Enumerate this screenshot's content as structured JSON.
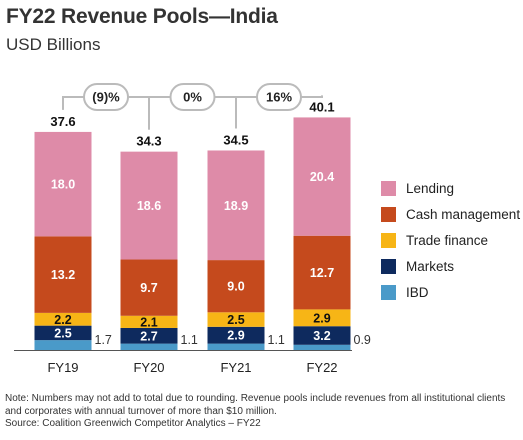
{
  "title": "FY22 Revenue Pools—India",
  "subtitle": "USD Billions",
  "chart_data": {
    "type": "bar",
    "stacked": true,
    "categories": [
      "FY19",
      "FY20",
      "FY21",
      "FY22"
    ],
    "series": [
      {
        "name": "IBD",
        "color": "#4a9ac9",
        "values": [
          1.7,
          1.1,
          1.1,
          0.9
        ]
      },
      {
        "name": "Markets",
        "color": "#0e2a5e",
        "values": [
          2.5,
          2.7,
          2.9,
          3.2
        ]
      },
      {
        "name": "Trade finance",
        "color": "#f7b516",
        "values": [
          2.2,
          2.1,
          2.5,
          2.9
        ]
      },
      {
        "name": "Cash management",
        "color": "#c54a1d",
        "values": [
          13.2,
          9.7,
          9.0,
          12.7
        ]
      },
      {
        "name": "Lending",
        "color": "#de8ba8",
        "values": [
          18.0,
          18.6,
          18.9,
          20.4
        ]
      }
    ],
    "totals": [
      "37.6",
      "34.3",
      "34.5",
      "40.1"
    ],
    "growth": [
      "(9)%",
      "0%",
      "16%"
    ],
    "legend_position": "right",
    "grid": false
  },
  "note": "Note: Numbers may not add to total due to rounding. Revenue pools include revenues from all institutional clients and corporates with annual turnover of more than $10 million.",
  "source": "Source: Coalition Greenwich Competitor Analytics – FY22"
}
